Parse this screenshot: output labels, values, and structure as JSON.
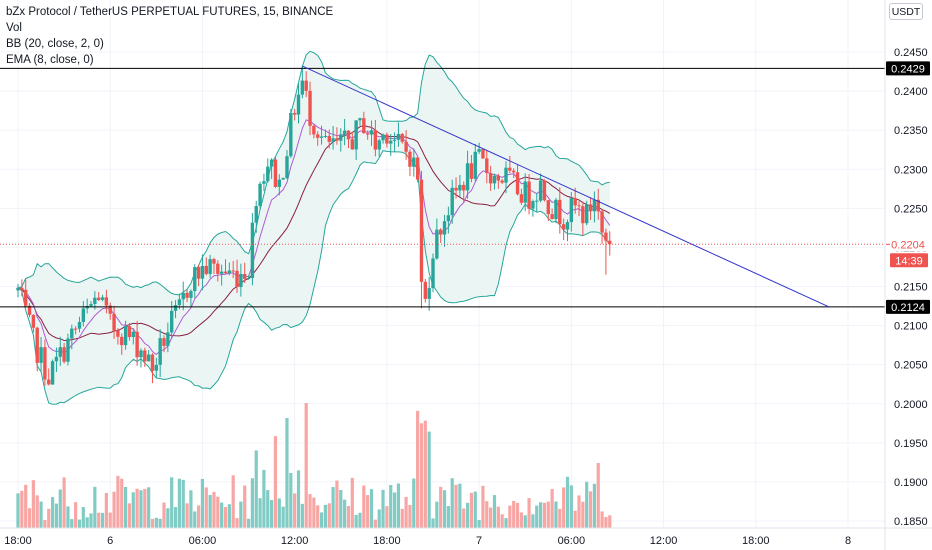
{
  "legend": {
    "title": "bZx Protocol / TetherUS PERPETUAL FUTURES, 15, BINANCE",
    "vol": "Vol",
    "bb": "BB (20, close, 2, 0)",
    "ema": "EMA (8, close, 0)"
  },
  "currency_button": "USDT",
  "colors": {
    "up": "#26a69a",
    "down": "#ef5350",
    "vol_up": "#80cbc4",
    "vol_down": "#f7a6a4",
    "bb": "#26a69a",
    "bb_fill": "#e6f4f1",
    "ema": "#8b1e3f",
    "basis": "#c2185b",
    "trendline": "#3333cc",
    "hline": "#000000",
    "last_price": "#ef5350"
  },
  "chart_data": {
    "type": "candlestick",
    "y_ticks": [
      0.245,
      0.24,
      0.235,
      0.23,
      0.225,
      0.22,
      0.215,
      0.21,
      0.205,
      0.2,
      0.195,
      0.19,
      0.185
    ],
    "y_tick_labels": [
      "0.2450",
      "0.2400",
      "0.2350",
      "0.2300",
      "0.2250",
      "0.2200",
      "0.2150",
      "0.2100",
      "0.2050",
      "0.2000",
      "0.1950",
      "0.1900",
      "0.1850"
    ],
    "x_labels": [
      {
        "label": "18:00",
        "t": -24
      },
      {
        "label": "6",
        "t": 0
      },
      {
        "label": "06:00",
        "t": 24
      },
      {
        "label": "12:00",
        "t": 48
      },
      {
        "label": "18:00",
        "t": 72
      },
      {
        "label": "7",
        "t": 96
      },
      {
        "label": "06:00",
        "t": 120
      },
      {
        "label": "12:00",
        "t": 144
      },
      {
        "label": "18:00",
        "t": 168
      },
      {
        "label": "8",
        "t": 192
      }
    ],
    "horizontal_lines": [
      {
        "label": "0.2429",
        "value": 0.2429
      },
      {
        "label": "0.2124",
        "value": 0.2124
      }
    ],
    "trendline": {
      "from": {
        "t": 50,
        "v": 0.2432
      },
      "to": {
        "t": 187,
        "v": 0.2124
      }
    },
    "last_price": {
      "label": "0.2204",
      "value": 0.2204,
      "countdown": "14:39"
    },
    "anchors": [
      {
        "t": -24,
        "v": 0.2145
      },
      {
        "t": -20,
        "v": 0.208
      },
      {
        "t": -16,
        "v": 0.2035
      },
      {
        "t": -12,
        "v": 0.207
      },
      {
        "t": -7,
        "v": 0.211
      },
      {
        "t": -3,
        "v": 0.214
      },
      {
        "t": 0,
        "v": 0.21
      },
      {
        "t": 4,
        "v": 0.209
      },
      {
        "t": 8,
        "v": 0.207
      },
      {
        "t": 11,
        "v": 0.2045
      },
      {
        "t": 15,
        "v": 0.2095
      },
      {
        "t": 18,
        "v": 0.212
      },
      {
        "t": 21,
        "v": 0.216
      },
      {
        "t": 25,
        "v": 0.2175
      },
      {
        "t": 29,
        "v": 0.217
      },
      {
        "t": 33,
        "v": 0.2165
      },
      {
        "t": 36,
        "v": 0.2175
      },
      {
        "t": 38,
        "v": 0.227
      },
      {
        "t": 41,
        "v": 0.231
      },
      {
        "t": 44,
        "v": 0.228
      },
      {
        "t": 46,
        "v": 0.233
      },
      {
        "t": 48,
        "v": 0.238
      },
      {
        "t": 50,
        "v": 0.241
      },
      {
        "t": 52,
        "v": 0.237
      },
      {
        "t": 56,
        "v": 0.233
      },
      {
        "t": 60,
        "v": 0.233
      },
      {
        "t": 63,
        "v": 0.234
      },
      {
        "t": 66,
        "v": 0.236
      },
      {
        "t": 69,
        "v": 0.233
      },
      {
        "t": 72,
        "v": 0.235
      },
      {
        "t": 75,
        "v": 0.233
      },
      {
        "t": 78,
        "v": 0.232
      },
      {
        "t": 80,
        "v": 0.229
      },
      {
        "t": 81,
        "v": 0.215
      },
      {
        "t": 82,
        "v": 0.213
      },
      {
        "t": 84,
        "v": 0.22
      },
      {
        "t": 87,
        "v": 0.224
      },
      {
        "t": 90,
        "v": 0.227
      },
      {
        "t": 93,
        "v": 0.2295
      },
      {
        "t": 96,
        "v": 0.231
      },
      {
        "t": 100,
        "v": 0.229
      },
      {
        "t": 103,
        "v": 0.229
      },
      {
        "t": 106,
        "v": 0.2275
      },
      {
        "t": 109,
        "v": 0.2265
      },
      {
        "t": 112,
        "v": 0.228
      },
      {
        "t": 115,
        "v": 0.225
      },
      {
        "t": 118,
        "v": 0.224
      },
      {
        "t": 121,
        "v": 0.225
      },
      {
        "t": 124,
        "v": 0.224
      },
      {
        "t": 126,
        "v": 0.2265
      },
      {
        "t": 128,
        "v": 0.222
      },
      {
        "t": 130,
        "v": 0.2204
      }
    ]
  }
}
